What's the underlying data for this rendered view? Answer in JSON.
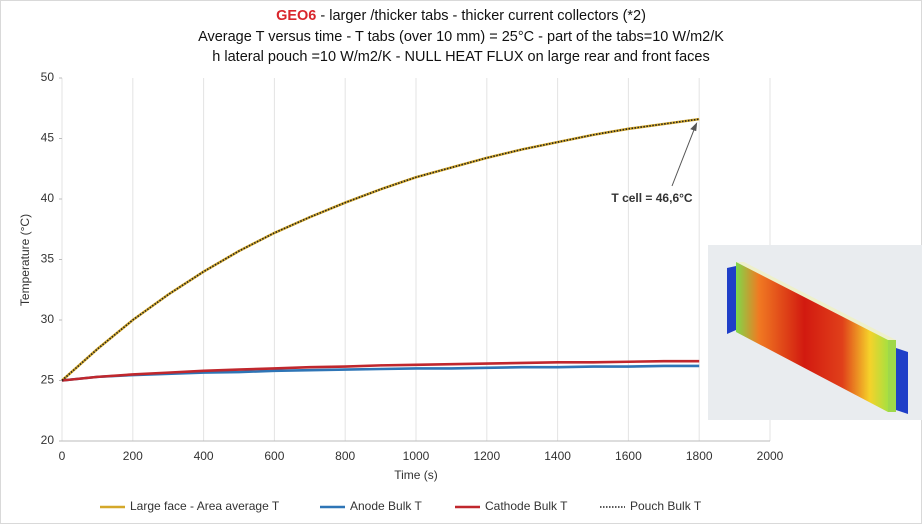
{
  "chart_data": {
    "type": "line",
    "title": {
      "highlight": "GEO6",
      "text": " - larger /thicker tabs - thicker current collectors (*2)"
    },
    "subtitle": [
      "Average T versus time - T  tabs (over 10 mm) = 25°C - part of the tabs=10 W/m2/K",
      "h lateral pouch =10 W/m2/K - NULL HEAT FLUX on large rear and front faces"
    ],
    "title_color": "#d9262c",
    "x_label": "Time (s)",
    "y_label": "Temperature (°C)",
    "x": [
      0,
      100,
      200,
      300,
      400,
      500,
      600,
      700,
      800,
      900,
      1000,
      1100,
      1200,
      1300,
      1400,
      1500,
      1600,
      1700,
      1800
    ],
    "series": [
      {
        "name": "Large face - Area average T",
        "color": "#d4a82a",
        "style": "solid",
        "values": [
          25,
          27.6,
          30.0,
          32.1,
          34.0,
          35.7,
          37.2,
          38.5,
          39.7,
          40.8,
          41.8,
          42.6,
          43.4,
          44.1,
          44.7,
          45.3,
          45.8,
          46.2,
          46.6
        ]
      },
      {
        "name": "Anode Bulk T",
        "color": "#2e75b6",
        "style": "solid",
        "values": [
          25,
          25.3,
          25.45,
          25.55,
          25.65,
          25.7,
          25.8,
          25.85,
          25.9,
          25.95,
          26.0,
          26.0,
          26.05,
          26.1,
          26.1,
          26.15,
          26.15,
          26.2,
          26.2
        ]
      },
      {
        "name": "Cathode Bulk T",
        "color": "#c0272d",
        "style": "solid",
        "values": [
          25,
          25.3,
          25.5,
          25.65,
          25.8,
          25.9,
          26.0,
          26.1,
          26.15,
          26.25,
          26.3,
          26.35,
          26.4,
          26.45,
          26.5,
          26.5,
          26.55,
          26.6,
          26.6
        ]
      },
      {
        "name": "Pouch Bulk T",
        "color": "#222222",
        "style": "dotted",
        "values": [
          25,
          27.6,
          30.0,
          32.1,
          34.0,
          35.7,
          37.2,
          38.5,
          39.7,
          40.8,
          41.8,
          42.6,
          43.4,
          44.1,
          44.7,
          45.3,
          45.8,
          46.2,
          46.6
        ]
      }
    ],
    "xlim": [
      0,
      2000
    ],
    "xticks": [
      0,
      200,
      400,
      600,
      800,
      1000,
      1200,
      1400,
      1600,
      1800,
      2000
    ],
    "ylim": [
      20,
      50
    ],
    "yticks": [
      20,
      25,
      30,
      35,
      40,
      45,
      50
    ],
    "x_grid": true,
    "legend": "bottom",
    "annotation": {
      "text": "T cell = 46,6°C",
      "color": "#d9262c"
    }
  }
}
